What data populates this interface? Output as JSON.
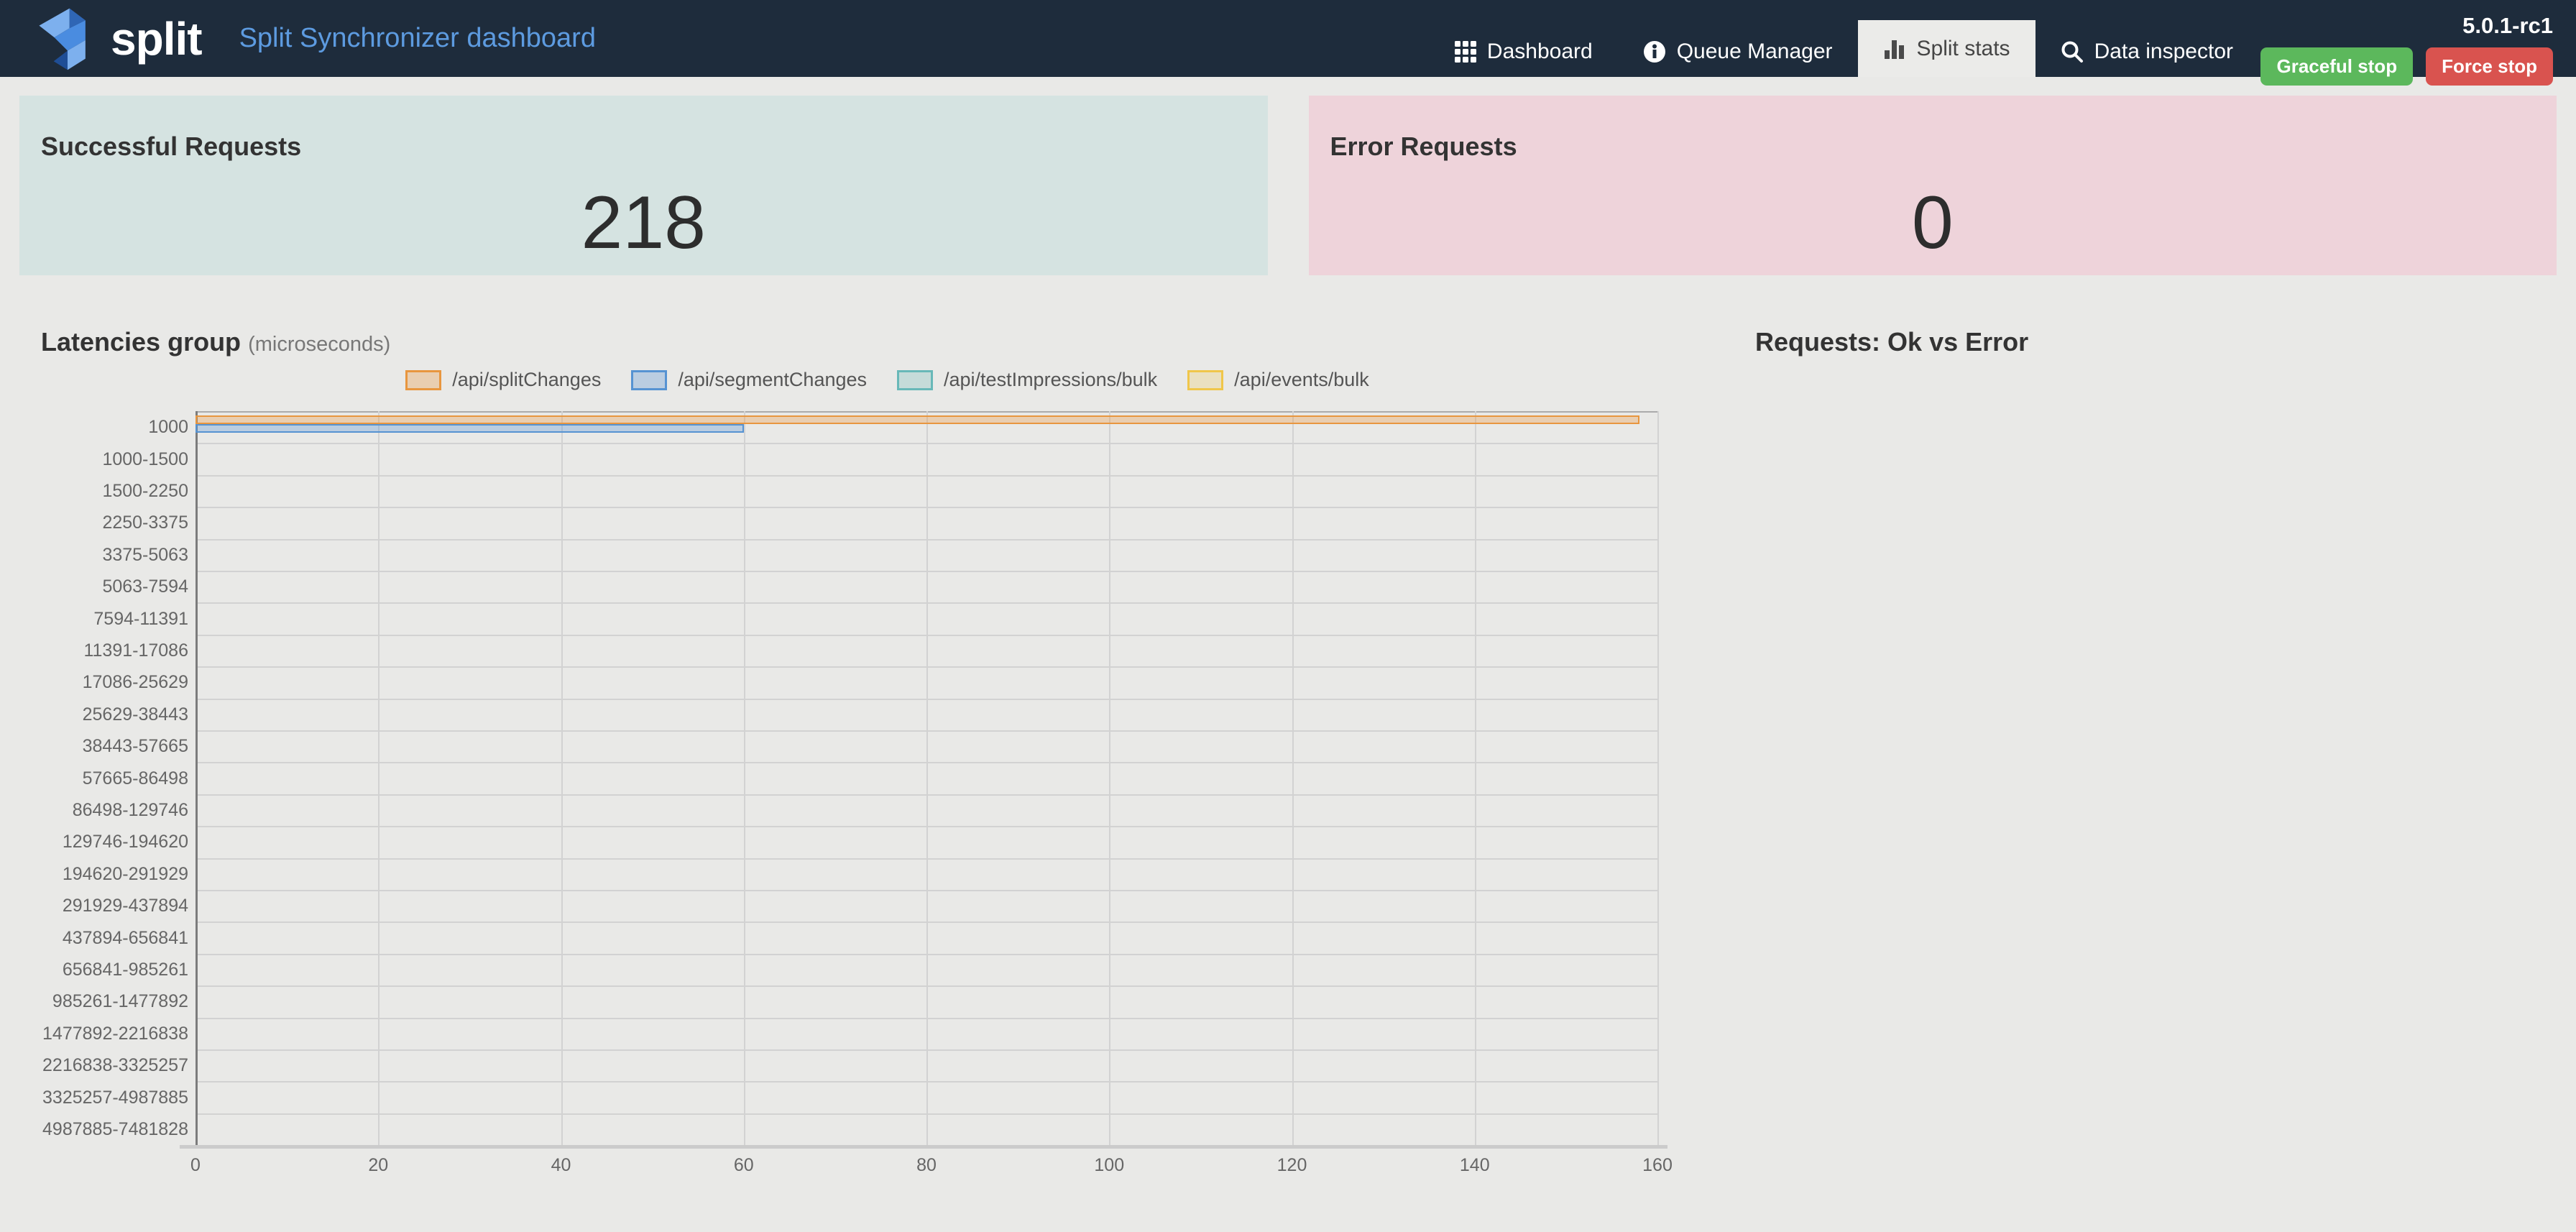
{
  "brand": {
    "logo_word": "split",
    "title": "Split Synchronizer dashboard"
  },
  "nav": {
    "items": [
      {
        "label": "Dashboard",
        "icon": "grid-icon",
        "active": false
      },
      {
        "label": "Queue Manager",
        "icon": "info-icon",
        "active": false
      },
      {
        "label": "Split stats",
        "icon": "bar-chart-icon",
        "active": true
      },
      {
        "label": "Data inspector",
        "icon": "search-icon",
        "active": false
      }
    ],
    "version": "5.0.1-rc1",
    "graceful_stop_label": "Graceful stop",
    "force_stop_label": "Force stop"
  },
  "cards": {
    "successful": {
      "title": "Successful Requests",
      "value": "218",
      "bg": "#d5e3e1"
    },
    "error": {
      "title": "Error Requests",
      "value": "0",
      "bg": "#eed3da"
    }
  },
  "sections": {
    "latencies": {
      "title": "Latencies group",
      "subtitle": "(microseconds)"
    },
    "requests": {
      "title": "Requests: Ok vs Error"
    }
  },
  "colors": {
    "navbar_bg": "#1e2c3c",
    "page_bg": "#e9e9e7",
    "active_tab_bg": "#ebebe9",
    "brand_title": "#5d9be0",
    "green_button": "#5cb85c",
    "red_button": "#d9534f",
    "axis_line": "#7c7c7c",
    "grid_line": "#d2d2d2"
  },
  "chart_data": [
    {
      "type": "bar",
      "orientation": "horizontal",
      "title": "Latencies group",
      "subtitle": "(microseconds)",
      "legend_position": "top",
      "grid": true,
      "xlim": [
        0,
        160
      ],
      "x_ticks": [
        0,
        20,
        40,
        60,
        80,
        100,
        120,
        140,
        160
      ],
      "categories": [
        "1000",
        "1000-1500",
        "1500-2250",
        "2250-3375",
        "3375-5063",
        "5063-7594",
        "7594-11391",
        "11391-17086",
        "17086-25629",
        "25629-38443",
        "38443-57665",
        "57665-86498",
        "86498-129746",
        "129746-194620",
        "194620-291929",
        "291929-437894",
        "437894-656841",
        "656841-985261",
        "985261-1477892",
        "1477892-2216838",
        "2216838-3325257",
        "3325257-4987885",
        "4987885-7481828"
      ],
      "series": [
        {
          "name": "/api/splitChanges",
          "border": "#e8963f",
          "fill": "rgba(232,150,63,0.32)",
          "values": [
            158,
            0,
            0,
            0,
            0,
            0,
            0,
            0,
            0,
            0,
            0,
            0,
            0,
            0,
            0,
            0,
            0,
            0,
            0,
            0,
            0,
            0,
            0
          ]
        },
        {
          "name": "/api/segmentChanges",
          "border": "#5693d2",
          "fill": "rgba(86,147,210,0.32)",
          "values": [
            60,
            0,
            0,
            0,
            0,
            0,
            0,
            0,
            0,
            0,
            0,
            0,
            0,
            0,
            0,
            0,
            0,
            0,
            0,
            0,
            0,
            0,
            0
          ]
        },
        {
          "name": "/api/testImpressions/bulk",
          "border": "#68b8b8",
          "fill": "rgba(104,184,184,0.28)",
          "values": [
            0,
            0,
            0,
            0,
            0,
            0,
            0,
            0,
            0,
            0,
            0,
            0,
            0,
            0,
            0,
            0,
            0,
            0,
            0,
            0,
            0,
            0,
            0
          ]
        },
        {
          "name": "/api/events/bulk",
          "border": "#f0c64a",
          "fill": "rgba(240,198,74,0.25)",
          "values": [
            0,
            0,
            0,
            0,
            0,
            0,
            0,
            0,
            0,
            0,
            0,
            0,
            0,
            0,
            0,
            0,
            0,
            0,
            0,
            0,
            0,
            0,
            0
          ]
        }
      ]
    },
    {
      "type": "pie",
      "title": "Requests: Ok vs Error",
      "series": [],
      "note": "title rendered only; no chart visible"
    }
  ]
}
